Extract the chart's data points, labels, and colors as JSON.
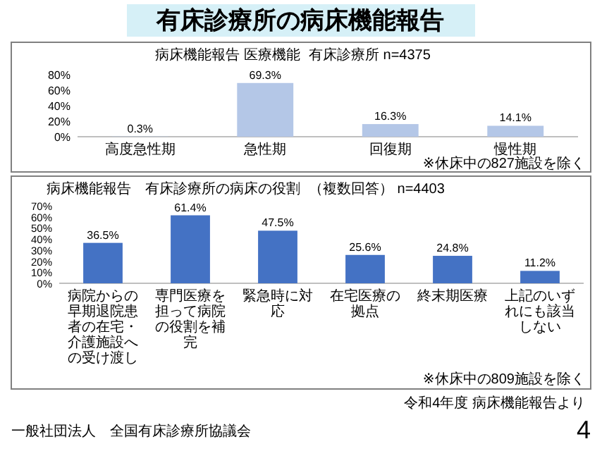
{
  "chart_data": [
    {
      "type": "bar",
      "title": "病床機能報告 医療機能",
      "subtitle": "有床診療所 n=4375",
      "categories": [
        "高度急性期",
        "急性期",
        "回復期",
        "慢性期"
      ],
      "values": [
        0.3,
        69.3,
        16.3,
        14.1
      ],
      "value_labels": [
        "0.3%",
        "69.3%",
        "16.3%",
        "14.1%"
      ],
      "color": "#b4c7e7",
      "ylim": [
        0,
        80
      ],
      "yticks": [
        {
          "value": 0,
          "label": "0%"
        },
        {
          "value": 20,
          "label": "20%"
        },
        {
          "value": 40,
          "label": "40%"
        },
        {
          "value": 60,
          "label": "60%"
        },
        {
          "value": 80,
          "label": "80%"
        }
      ],
      "annotations": [
        "有床診療所の病床機能報告",
        "※休床中の827施設を除く"
      ]
    },
    {
      "type": "bar",
      "title": "病床機能報告　有床診療所の病床の役割",
      "subtitle": "（複数回答） n=4403",
      "categories": [
        "病院からの早期退院患者の在宅・介護施設への受け渡し",
        "専門医療を担って病院の役割を補完",
        "緊急時に対応",
        "在宅医療の拠点",
        "終末期医療",
        "上記のいずれにも該当しない"
      ],
      "values": [
        36.5,
        61.4,
        47.5,
        25.6,
        24.8,
        11.2
      ],
      "value_labels": [
        "36.5%",
        "61.4%",
        "47.5%",
        "25.6%",
        "24.8%",
        "11.2%"
      ],
      "color": "#4472c4",
      "ylim": [
        0,
        70
      ],
      "yticks": [
        {
          "value": 0,
          "label": "0%"
        },
        {
          "value": 10,
          "label": "10%"
        },
        {
          "value": 20,
          "label": "20%"
        },
        {
          "value": 30,
          "label": "30%"
        },
        {
          "value": 40,
          "label": "40%"
        },
        {
          "value": 50,
          "label": "50%"
        },
        {
          "value": 60,
          "label": "60%"
        },
        {
          "value": 70,
          "label": "70%"
        }
      ],
      "annotations": [
        "※休床中の809施設を除く",
        "令和4年度 病床機能報告より",
        "一般社団法人　全国有床診療所協議会",
        "4"
      ]
    }
  ]
}
